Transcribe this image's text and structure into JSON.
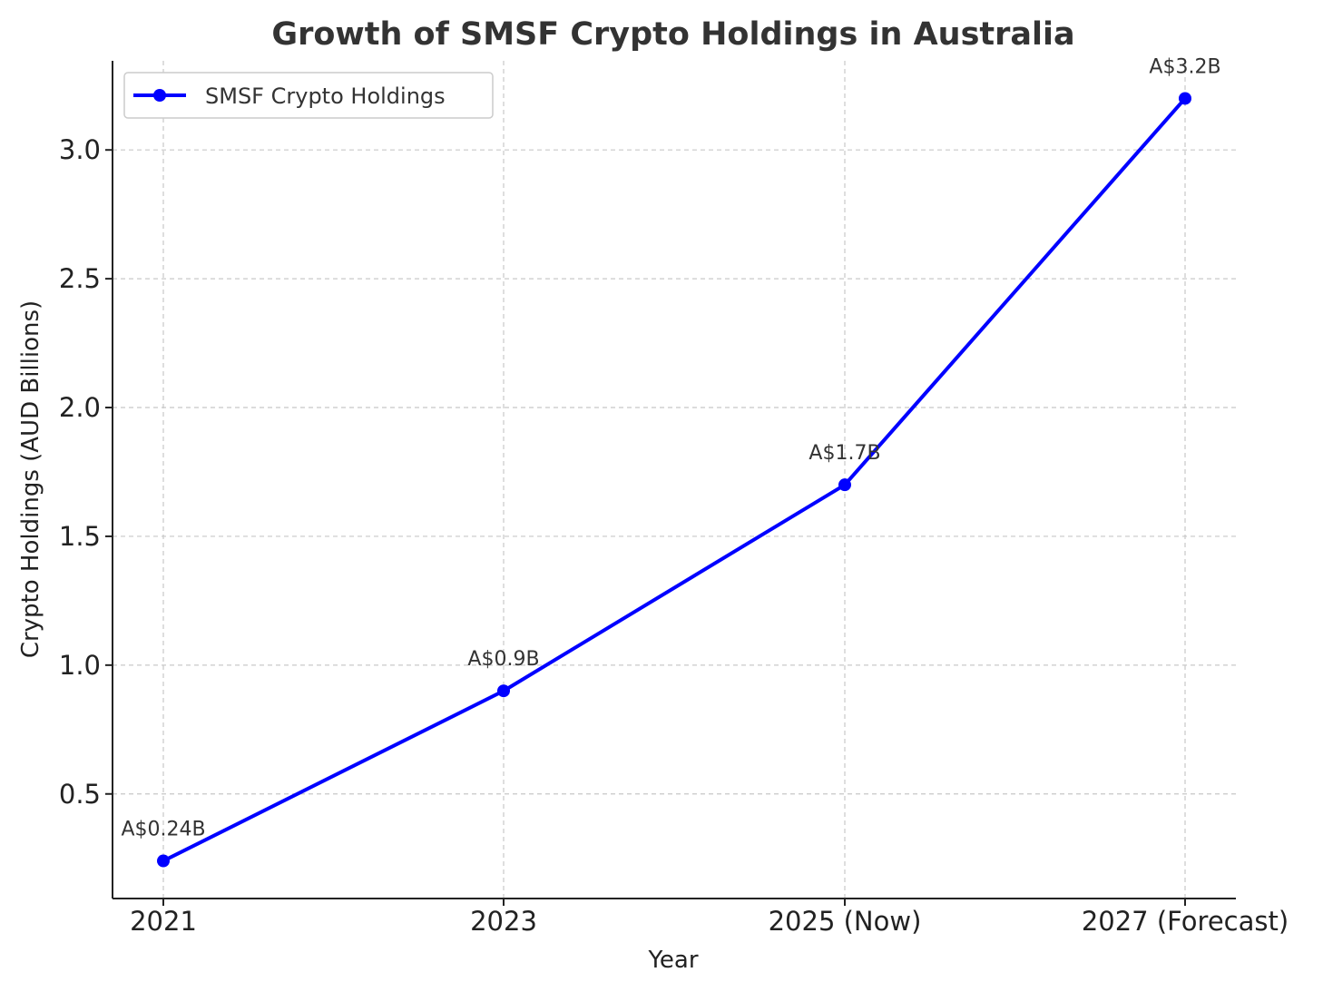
{
  "chart_data": {
    "type": "line",
    "title": "Growth of SMSF Crypto Holdings in Australia",
    "xlabel": "Year",
    "ylabel": "Crypto Holdings (AUD Billions)",
    "categories": [
      "2021",
      "2023",
      "2025 (Now)",
      "2027 (Forecast)"
    ],
    "series": [
      {
        "name": "SMSF Crypto Holdings",
        "values": [
          0.24,
          0.9,
          1.7,
          3.2
        ],
        "labels": [
          "A$0.24B",
          "A$0.9B",
          "A$1.7B",
          "A$3.2B"
        ],
        "color": "#0000ff",
        "marker": "circle"
      }
    ],
    "yticks": [
      0.5,
      1.0,
      1.5,
      2.0,
      2.5,
      3.0
    ],
    "ytick_labels": [
      "0.5",
      "1.0",
      "1.5",
      "2.0",
      "2.5",
      "3.0"
    ],
    "ylim": [
      0.094,
      3.346
    ],
    "grid": true,
    "legend_position": "upper-left"
  }
}
